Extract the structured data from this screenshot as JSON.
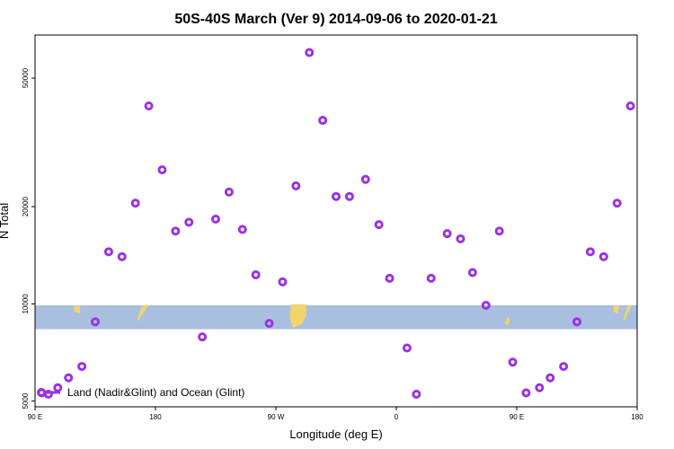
{
  "chart_data": {
    "type": "scatter",
    "title": "50S-40S March (Ver 9)   2014-09-06 to 2020-01-21",
    "xlabel": "Longitude (deg E)",
    "ylabel": "N Total",
    "x_tick_labels": [
      "90 E",
      "180",
      "90 W",
      "0",
      "90 E",
      "180"
    ],
    "x_tick_values": [
      90,
      180,
      270,
      360,
      450,
      540
    ],
    "xlim": [
      90,
      540
    ],
    "y_tick_labels": [
      "5000",
      "10000",
      "20000",
      "50000"
    ],
    "y_tick_values": [
      5000,
      10000,
      20000,
      50000
    ],
    "ylim": [
      4800,
      68000
    ],
    "y_scale": "log",
    "grid": false,
    "legend": {
      "label": "Land (Nadir&Glint) and Ocean (Glint)",
      "position": "bottom-left",
      "color": "#9b30e8"
    },
    "band": {
      "y_range": [
        8350,
        9900
      ],
      "color": "#a9bfdf"
    },
    "land_color": "#f3d36b",
    "series": [
      {
        "color": "#9b30e8",
        "points": [
          [
            95,
            5300
          ],
          [
            100,
            5250
          ],
          [
            107,
            5500
          ],
          [
            115,
            5900
          ],
          [
            125,
            6400
          ],
          [
            135,
            8800
          ],
          [
            145,
            14500
          ],
          [
            155,
            14000
          ],
          [
            165,
            20500
          ],
          [
            175,
            41000
          ],
          [
            185,
            26000
          ],
          [
            195,
            16800
          ],
          [
            205,
            17900
          ],
          [
            215,
            7900
          ],
          [
            225,
            18300
          ],
          [
            235,
            22200
          ],
          [
            245,
            17000
          ],
          [
            255,
            12300
          ],
          [
            265,
            8700
          ],
          [
            275,
            11700
          ],
          [
            285,
            23200
          ],
          [
            295,
            60000
          ],
          [
            305,
            37000
          ],
          [
            315,
            21500
          ],
          [
            325,
            21500
          ],
          [
            337,
            24300
          ],
          [
            347,
            17600
          ],
          [
            355,
            12000
          ],
          [
            368,
            7300
          ],
          [
            375,
            5250
          ],
          [
            386,
            12000
          ],
          [
            398,
            16500
          ],
          [
            408,
            15900
          ],
          [
            417,
            12500
          ],
          [
            427,
            9900
          ],
          [
            437,
            16800
          ],
          [
            447,
            6600
          ],
          [
            457,
            5300
          ],
          [
            467,
            5500
          ],
          [
            475,
            5900
          ],
          [
            485,
            6400
          ],
          [
            495,
            8800
          ],
          [
            505,
            14500
          ],
          [
            515,
            14000
          ],
          [
            525,
            20500
          ],
          [
            535,
            41000
          ]
        ]
      }
    ]
  }
}
